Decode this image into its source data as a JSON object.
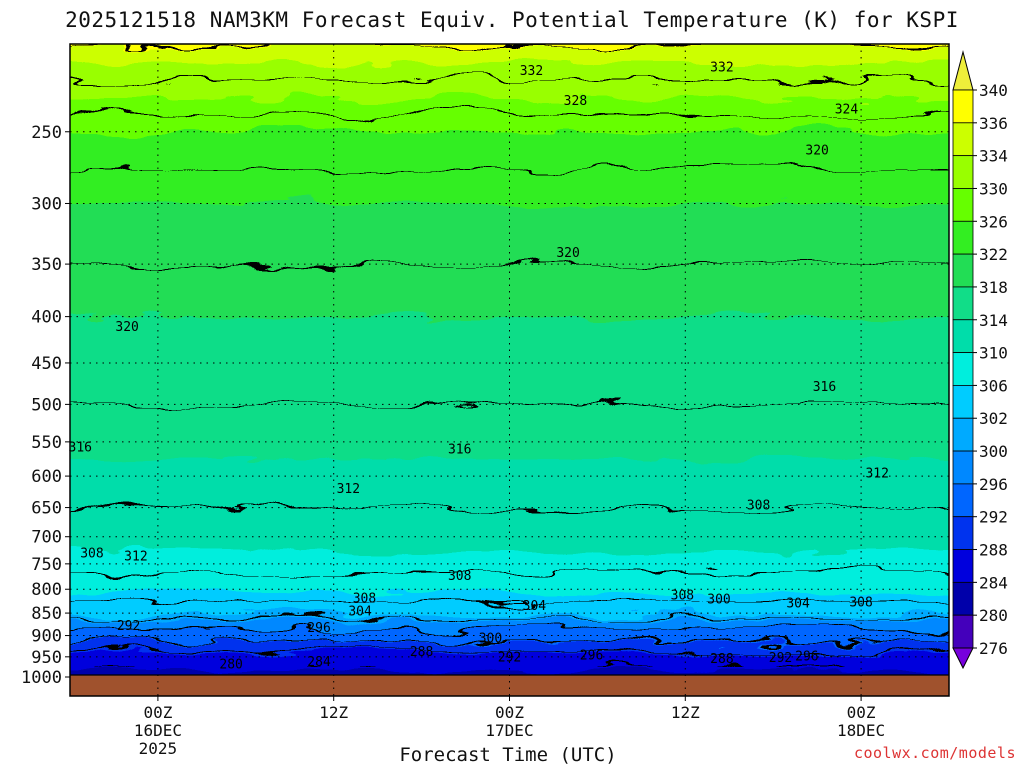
{
  "chart_data": {
    "type": "heatmap",
    "subtype": "filled-contour time-height cross-section",
    "title": "2025121518 NAM3KM Forecast Equiv. Potential Temperature (K) for KSPI",
    "xlabel": "Forecast Time (UTC)",
    "ylabel": "",
    "credit": "coolwx.com/models",
    "units": "K",
    "x_forecast_hours": [
      0,
      60
    ],
    "x_ticks": [
      {
        "hour": 6,
        "lines": [
          "00Z",
          "16DEC",
          "2025"
        ]
      },
      {
        "hour": 18,
        "lines": [
          "12Z"
        ]
      },
      {
        "hour": 30,
        "lines": [
          "00Z",
          "17DEC"
        ]
      },
      {
        "hour": 42,
        "lines": [
          "12Z"
        ]
      },
      {
        "hour": 54,
        "lines": [
          "00Z",
          "18DEC"
        ]
      }
    ],
    "y_pressure_range_hpa": [
      1000,
      200
    ],
    "y_ticks": [
      "250",
      "300",
      "350",
      "400",
      "450",
      "500",
      "550",
      "600",
      "650",
      "700",
      "750",
      "800",
      "850",
      "900",
      "950",
      "1000"
    ],
    "colorbar": {
      "levels": [
        "340",
        "336",
        "334",
        "330",
        "326",
        "322",
        "318",
        "314",
        "310",
        "306",
        "302",
        "300",
        "296",
        "292",
        "288",
        "284",
        "280",
        "276"
      ],
      "colors": [
        "#eeee3a",
        "#ffff00",
        "#ccff00",
        "#99ff00",
        "#66ff00",
        "#33ee22",
        "#22dd55",
        "#11dd88",
        "#00ddaa",
        "#00eedd",
        "#00ccff",
        "#00aaff",
        "#0088ff",
        "#0066ff",
        "#0033ee",
        "#0000dd",
        "#0000aa",
        "#4400bb",
        "#7700dd"
      ]
    },
    "surface_color": "#a0522d",
    "contour_interval_k": 4,
    "contour_labels": [
      {
        "text": "332",
        "hour": 31.5,
        "p": 214
      },
      {
        "text": "332",
        "hour": 44.5,
        "p": 212
      },
      {
        "text": "328",
        "hour": 34.5,
        "p": 231
      },
      {
        "text": "324",
        "hour": 53.0,
        "p": 236
      },
      {
        "text": "320",
        "hour": 51.0,
        "p": 262
      },
      {
        "text": "320",
        "hour": 34.0,
        "p": 340
      },
      {
        "text": "320",
        "hour": 3.9,
        "p": 410
      },
      {
        "text": "316",
        "hour": 51.5,
        "p": 478
      },
      {
        "text": "316",
        "hour": 0.7,
        "p": 557
      },
      {
        "text": "316",
        "hour": 26.6,
        "p": 560
      },
      {
        "text": "312",
        "hour": 55.1,
        "p": 595
      },
      {
        "text": "312",
        "hour": 19.0,
        "p": 619
      },
      {
        "text": "312",
        "hour": 4.5,
        "p": 735
      },
      {
        "text": "308",
        "hour": 47.0,
        "p": 646
      },
      {
        "text": "308",
        "hour": 1.5,
        "p": 730
      },
      {
        "text": "308",
        "hour": 26.6,
        "p": 773
      },
      {
        "text": "308",
        "hour": 20.1,
        "p": 818
      },
      {
        "text": "308",
        "hour": 41.8,
        "p": 812
      },
      {
        "text": "308",
        "hour": 54.0,
        "p": 826
      },
      {
        "text": "304",
        "hour": 19.8,
        "p": 846
      },
      {
        "text": "304",
        "hour": 31.7,
        "p": 834
      },
      {
        "text": "304",
        "hour": 49.7,
        "p": 828
      },
      {
        "text": "300",
        "hour": 44.3,
        "p": 820
      },
      {
        "text": "300",
        "hour": 28.7,
        "p": 906
      },
      {
        "text": "296",
        "hour": 17.0,
        "p": 882
      },
      {
        "text": "296",
        "hour": 35.6,
        "p": 945
      },
      {
        "text": "296",
        "hour": 50.3,
        "p": 948
      },
      {
        "text": "292",
        "hour": 4.0,
        "p": 877
      },
      {
        "text": "292",
        "hour": 30.0,
        "p": 950
      },
      {
        "text": "292",
        "hour": 48.5,
        "p": 952
      },
      {
        "text": "288",
        "hour": 24.0,
        "p": 937
      },
      {
        "text": "288",
        "hour": 44.5,
        "p": 954
      },
      {
        "text": "284",
        "hour": 17.0,
        "p": 961
      },
      {
        "text": "280",
        "hour": 11.0,
        "p": 968
      }
    ],
    "approx_profile": [
      {
        "p": 1000,
        "thetae": 282
      },
      {
        "p": 950,
        "thetae": 286
      },
      {
        "p": 900,
        "thetae": 294
      },
      {
        "p": 850,
        "thetae": 302
      },
      {
        "p": 800,
        "thetae": 306
      },
      {
        "p": 750,
        "thetae": 309
      },
      {
        "p": 700,
        "thetae": 311
      },
      {
        "p": 650,
        "thetae": 312
      },
      {
        "p": 600,
        "thetae": 313
      },
      {
        "p": 550,
        "thetae": 315
      },
      {
        "p": 500,
        "thetae": 316
      },
      {
        "p": 450,
        "thetae": 317
      },
      {
        "p": 400,
        "thetae": 318
      },
      {
        "p": 350,
        "thetae": 320
      },
      {
        "p": 300,
        "thetae": 322
      },
      {
        "p": 250,
        "thetae": 326
      },
      {
        "p": 200,
        "thetae": 336
      }
    ]
  }
}
